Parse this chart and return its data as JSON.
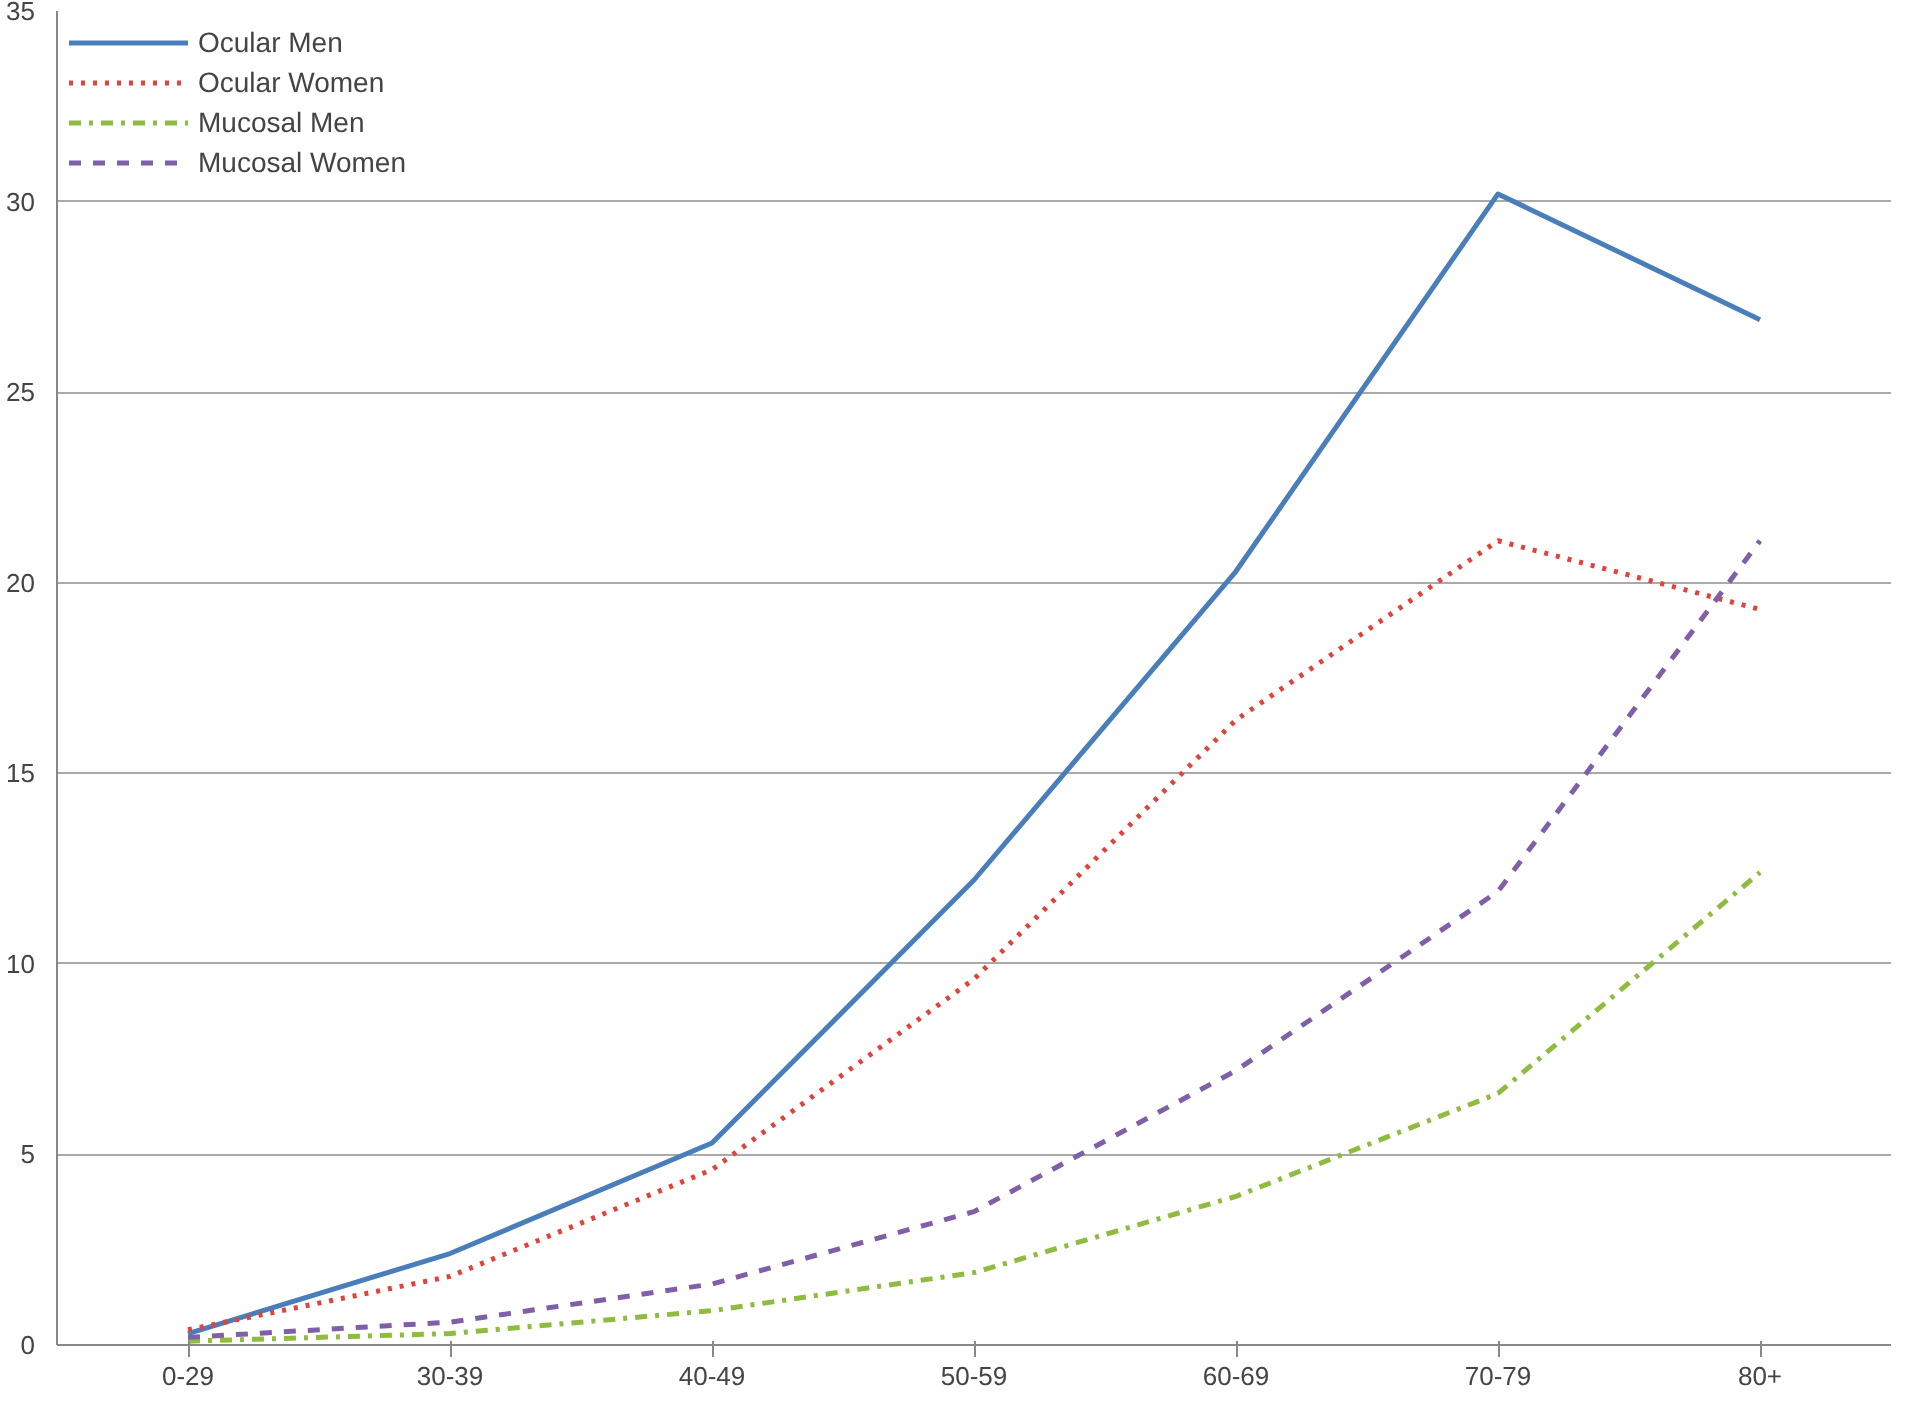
{
  "chart_data": {
    "type": "line",
    "categories": [
      "0-29",
      "30-39",
      "40-49",
      "50-59",
      "60-69",
      "70-79",
      "80+"
    ],
    "series": [
      {
        "name": "Ocular Men",
        "color": "#4a7ebb",
        "line_style": "solid",
        "values": [
          0.3,
          2.4,
          5.3,
          12.2,
          20.3,
          30.2,
          26.9
        ]
      },
      {
        "name": "Ocular Women",
        "color": "#e0433b",
        "line_style": "dotted",
        "values": [
          0.4,
          1.8,
          4.6,
          9.6,
          16.4,
          21.1,
          19.3
        ]
      },
      {
        "name": "Mucosal Men",
        "color": "#8fbc3f",
        "line_style": "dashdot",
        "values": [
          0.1,
          0.3,
          0.9,
          1.9,
          3.9,
          6.6,
          12.4
        ]
      },
      {
        "name": "Mucosal Women",
        "color": "#7f5fa8",
        "line_style": "dashed",
        "values": [
          0.2,
          0.6,
          1.6,
          3.5,
          7.2,
          11.9,
          21.1
        ]
      }
    ],
    "ylim": [
      0,
      35
    ],
    "yticks": [
      0,
      5,
      10,
      15,
      20,
      25,
      30,
      35
    ],
    "grid": "y",
    "legend": "top left",
    "marker": "none"
  }
}
